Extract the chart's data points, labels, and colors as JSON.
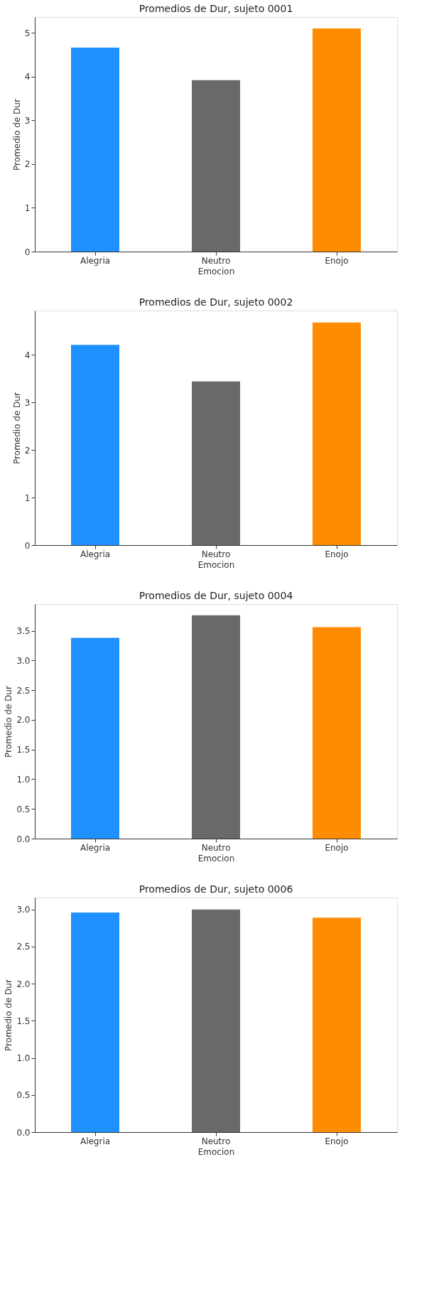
{
  "chart_data": [
    {
      "type": "bar",
      "title": "Promedios de Dur, sujeto 0001",
      "xlabel": "Emocion",
      "ylabel": "Promedio de Dur",
      "categories": [
        "Alegria",
        "Neutro",
        "Enojo"
      ],
      "values": [
        4.66,
        3.92,
        5.1
      ],
      "colors": [
        "#1e90ff",
        "#696969",
        "#ff8c00"
      ],
      "ylim": [
        0,
        5.36
      ],
      "yticks": [
        0,
        1,
        2,
        3,
        4,
        5
      ],
      "grid": false
    },
    {
      "type": "bar",
      "title": "Promedios de Dur, sujeto 0002",
      "xlabel": "Emocion",
      "ylabel": "Promedio de Dur",
      "categories": [
        "Alegria",
        "Neutro",
        "Enojo"
      ],
      "values": [
        4.21,
        3.44,
        4.68
      ],
      "colors": [
        "#1e90ff",
        "#696969",
        "#ff8c00"
      ],
      "ylim": [
        0,
        4.93
      ],
      "yticks": [
        0,
        1,
        2,
        3,
        4
      ],
      "grid": false
    },
    {
      "type": "bar",
      "title": "Promedios de Dur, sujeto 0004",
      "xlabel": "Emocion",
      "ylabel": "Promedio de Dur",
      "categories": [
        "Alegria",
        "Neutro",
        "Enojo"
      ],
      "values": [
        3.38,
        3.76,
        3.56
      ],
      "colors": [
        "#1e90ff",
        "#696969",
        "#ff8c00"
      ],
      "ylim": [
        0,
        3.95
      ],
      "yticks": [
        {
          "value": 0,
          "label": "0.0"
        },
        0.5,
        {
          "value": 1,
          "label": "1.0"
        },
        1.5,
        {
          "value": 2,
          "label": "2.0"
        },
        2.5,
        {
          "value": 3,
          "label": "3.0"
        },
        3.5
      ],
      "grid": false
    },
    {
      "type": "bar",
      "title": "Promedios de Dur, sujeto 0006",
      "xlabel": "Emocion",
      "ylabel": "Promedio de Dur",
      "categories": [
        "Alegria",
        "Neutro",
        "Enojo"
      ],
      "values": [
        2.96,
        3.0,
        2.89
      ],
      "colors": [
        "#1e90ff",
        "#696969",
        "#ff8c00"
      ],
      "ylim": [
        0,
        3.16
      ],
      "yticks": [
        {
          "value": 0,
          "label": "0.0"
        },
        0.5,
        {
          "value": 1,
          "label": "1.0"
        },
        1.5,
        {
          "value": 2,
          "label": "2.0"
        },
        2.5,
        {
          "value": 3,
          "label": "3.0"
        }
      ],
      "grid": false
    }
  ]
}
